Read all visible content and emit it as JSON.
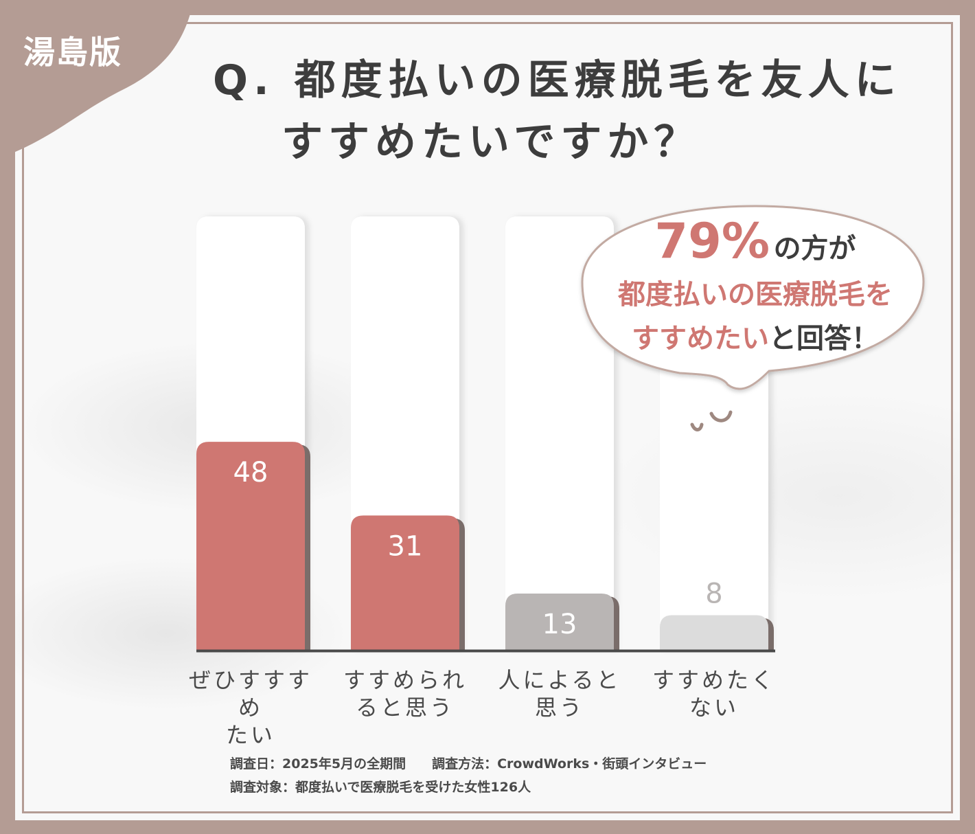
{
  "badge": "湯島版",
  "title_line1": "Q. 都度払いの医療脱毛を友人に",
  "title_line2": "すすめたいですか？",
  "callout": {
    "percent": "79%",
    "of": "の方が",
    "line2": "都度払いの医療脱毛を",
    "line3_highlight": "すすめたい",
    "line3_rest": "と回答！"
  },
  "chart_data": {
    "type": "bar",
    "categories": [
      "ぜひすすめたい",
      "すすめられると思う",
      "人によると思う",
      "すすめたくない"
    ],
    "category_lines": [
      [
        "ぜひすすすめ",
        "たい"
      ],
      [
        "すすめられ",
        "ると思う"
      ],
      [
        "人によると",
        "思う"
      ],
      [
        "すすめたく",
        "ない"
      ]
    ],
    "values": [
      48,
      31,
      13,
      8
    ],
    "value_labels": [
      "48",
      "31",
      "13",
      "8"
    ],
    "ylim": [
      0,
      100
    ],
    "colors": [
      "#cf7772",
      "#cf7772",
      "#b9b5b4",
      "#dcdcdc"
    ],
    "label_colors": [
      "#ffffff",
      "#ffffff",
      "#ffffff",
      "#b9b5b4"
    ]
  },
  "footnotes": {
    "line1": "調査日：2025年5月の全期間　　調査方法：CrowdWorks・街頭インタビュー",
    "line2": "調査対象：都度払いで医療脱毛を受けた女性126人"
  }
}
